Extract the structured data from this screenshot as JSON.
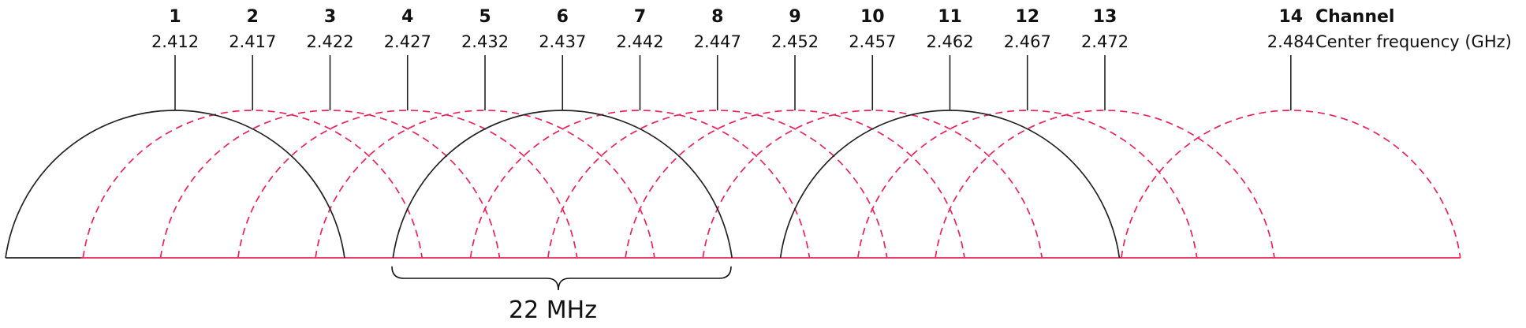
{
  "legend": {
    "channel_label": "Channel",
    "frequency_label": "Center frequency (GHz)"
  },
  "bandwidth_label": "22 MHz",
  "colors": {
    "non_overlapping": "#222222",
    "overlapping": "#e8245a",
    "text": "#111111"
  },
  "channels": [
    {
      "number": "1",
      "freq": "2.412",
      "highlight": true
    },
    {
      "number": "2",
      "freq": "2.417",
      "highlight": false
    },
    {
      "number": "3",
      "freq": "2.422",
      "highlight": false
    },
    {
      "number": "4",
      "freq": "2.427",
      "highlight": false
    },
    {
      "number": "5",
      "freq": "2.432",
      "highlight": false
    },
    {
      "number": "6",
      "freq": "2.437",
      "highlight": true
    },
    {
      "number": "7",
      "freq": "2.442",
      "highlight": false
    },
    {
      "number": "8",
      "freq": "2.447",
      "highlight": false
    },
    {
      "number": "9",
      "freq": "2.452",
      "highlight": false
    },
    {
      "number": "10",
      "freq": "2.457",
      "highlight": false
    },
    {
      "number": "11",
      "freq": "2.462",
      "highlight": true
    },
    {
      "number": "12",
      "freq": "2.467",
      "highlight": false
    },
    {
      "number": "13",
      "freq": "2.472",
      "highlight": false
    },
    {
      "number": "14",
      "freq": "2.484",
      "highlight": false
    }
  ]
}
